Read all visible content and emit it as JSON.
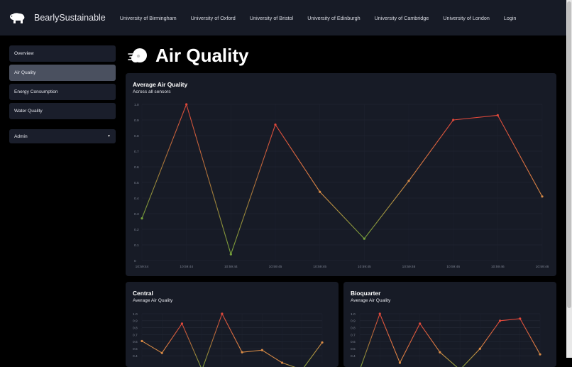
{
  "app": {
    "brand": "BearlySustainable"
  },
  "nav": {
    "items": [
      "University of Birmingham",
      "University of Oxford",
      "University of Bristol",
      "University of Edinburgh",
      "University of Cambridge",
      "University of London",
      "Login"
    ]
  },
  "sidebar": {
    "items": [
      "Overview",
      "Air Quality",
      "Energy Consumption",
      "Water Quality"
    ],
    "active": "Air Quality",
    "admin_label": "Admin"
  },
  "page": {
    "title": "Air Quality"
  },
  "colors": {
    "high": "#e0483a",
    "mid": "#d88a45",
    "low": "#76a13a",
    "background": "#171b26"
  },
  "chart_data": [
    {
      "type": "line",
      "title": "Average Air Quality",
      "subtitle": "Across all sensors",
      "x": [
        "10:59:44",
        "10:59:44",
        "10:59:44",
        "10:59:45",
        "10:59:45",
        "10:59:45",
        "10:59:46",
        "10:59:46",
        "10:59:46",
        "10:59:46"
      ],
      "yticks": [
        "0",
        "0.1",
        "0.2",
        "0.3",
        "0.4",
        "0.5",
        "0.6",
        "0.7",
        "0.8",
        "0.9",
        "1.0"
      ],
      "values": [
        0.27,
        1.0,
        0.04,
        0.87,
        0.44,
        0.14,
        0.51,
        0.9,
        0.93,
        0.41
      ],
      "ylim": [
        0,
        1.0
      ],
      "grid": true
    },
    {
      "type": "line",
      "title": "Central",
      "subtitle": "Average Air Quality",
      "yticks": [
        "0.4",
        "0.5",
        "0.6",
        "0.7",
        "0.8",
        "0.9",
        "1.0"
      ],
      "values": [
        0.61,
        0.44,
        0.86,
        0.2,
        1.0,
        0.45,
        0.48,
        0.3,
        0.2,
        0.59
      ],
      "ylim": [
        0.3,
        1.0
      ],
      "grid": true
    },
    {
      "type": "line",
      "title": "Bioquarter",
      "subtitle": "Average Air Quality",
      "yticks": [
        "0.4",
        "0.5",
        "0.6",
        "0.7",
        "0.8",
        "0.9",
        "1.0"
      ],
      "values": [
        0.2,
        1.0,
        0.3,
        0.86,
        0.45,
        0.2,
        0.5,
        0.9,
        0.93,
        0.42
      ],
      "ylim": [
        0.3,
        1.0
      ],
      "grid": true
    }
  ]
}
